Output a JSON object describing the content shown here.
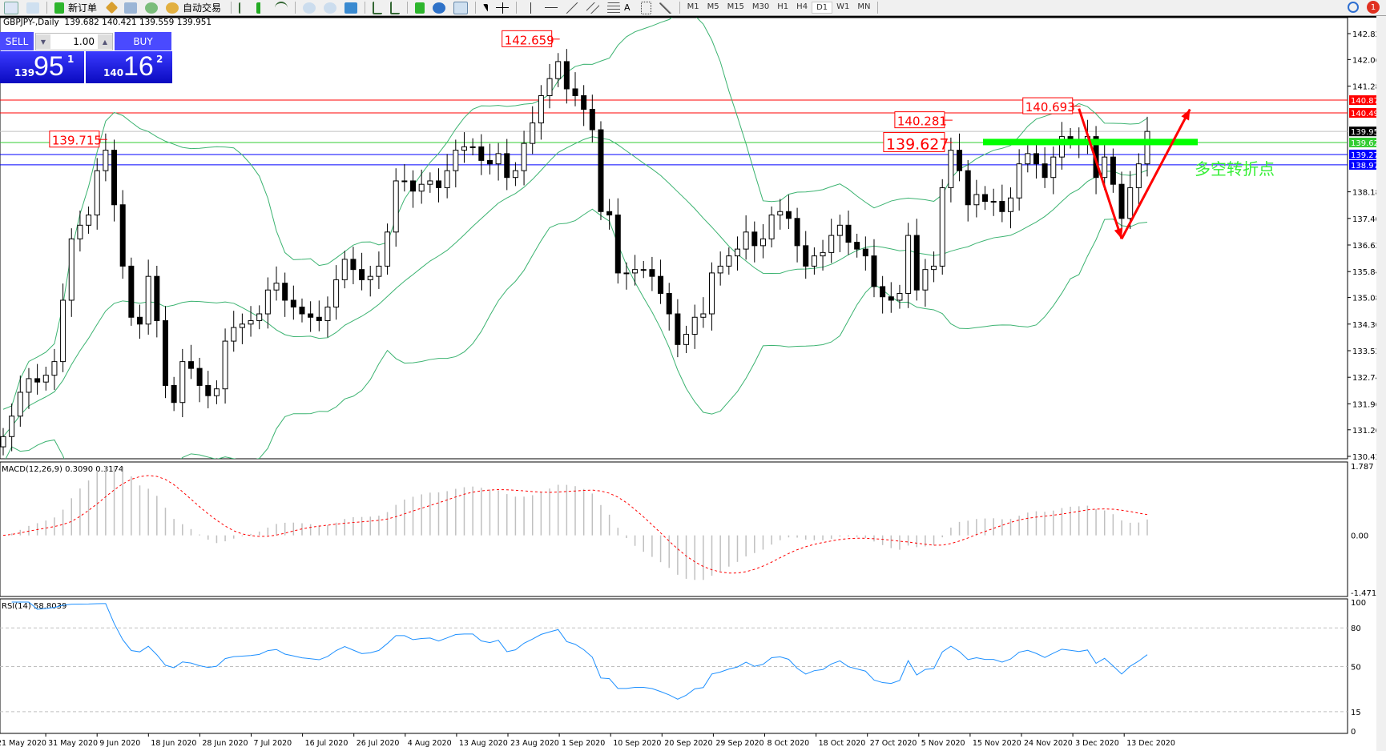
{
  "toolbar": {
    "new_order": "新订单",
    "auto_trading": "自动交易",
    "timeframes": [
      "M1",
      "M5",
      "M15",
      "M30",
      "H1",
      "H4",
      "D1",
      "W1",
      "MN"
    ],
    "active_timeframe": "D1",
    "notification_count": "1"
  },
  "chart": {
    "title": "GBPJPY-,Daily",
    "ohlc": "139.682 140.421 139.559 139.951"
  },
  "one_click": {
    "sell_label": "SELL",
    "buy_label": "BUY",
    "lot": "1.00",
    "sell_big": "139",
    "sell_main": "95",
    "sell_sup": "1",
    "buy_big": "140",
    "buy_main": "16",
    "buy_sup": "2"
  },
  "colors": {
    "bull": "#ffffff",
    "bear": "#000000",
    "bands": "#3cb371",
    "resistance": "#ff0000",
    "support": "#0000ff",
    "pivot": "#00ff00",
    "bid": "#c0c0c0",
    "macd_hist": "#c0c0c0",
    "macd_signal": "#ff0000",
    "rsi": "#1e90ff"
  },
  "chart_data": [
    {
      "type": "candlestick",
      "symbol": "GBPJPY-",
      "timeframe": "Daily",
      "ylim": [
        130.42,
        142.82
      ],
      "y_ticks": [
        "142.820",
        "142.060",
        "141.280",
        "138.180",
        "137.400",
        "136.620",
        "135.840",
        "135.080",
        "134.300",
        "133.520",
        "132.740",
        "131.960",
        "131.200",
        "130.420"
      ],
      "x_ticks": [
        "21 May 2020",
        "31 May 2020",
        "9 Jun 2020",
        "18 Jun 2020",
        "28 Jun 2020",
        "7 Jul 2020",
        "16 Jul 2020",
        "26 Jul 2020",
        "4 Aug 2020",
        "13 Aug 2020",
        "23 Aug 2020",
        "1 Sep 2020",
        "10 Sep 2020",
        "20 Sep 2020",
        "29 Sep 2020",
        "8 Oct 2020",
        "18 Oct 2020",
        "27 Oct 2020",
        "5 Nov 2020",
        "15 Nov 2020",
        "24 Nov 2020",
        "3 Dec 2020",
        "13 Dec 2020"
      ],
      "close": [
        131.0,
        131.6,
        132.3,
        132.7,
        132.6,
        132.8,
        133.2,
        135.0,
        136.8,
        137.2,
        137.5,
        138.8,
        139.4,
        137.8,
        136.0,
        134.5,
        134.3,
        135.7,
        134.4,
        132.5,
        132.0,
        133.2,
        133.0,
        132.5,
        132.2,
        132.4,
        133.8,
        134.2,
        134.3,
        134.4,
        134.6,
        135.3,
        135.5,
        135.0,
        134.8,
        134.6,
        134.5,
        134.4,
        134.8,
        135.6,
        136.2,
        135.9,
        135.6,
        135.7,
        136.0,
        137.0,
        138.5,
        138.5,
        138.2,
        138.4,
        138.5,
        138.3,
        138.8,
        139.4,
        139.5,
        139.5,
        139.1,
        139.0,
        139.3,
        138.6,
        138.8,
        139.6,
        140.2,
        141.0,
        141.5,
        142.0,
        141.2,
        141.0,
        140.6,
        140.0,
        137.6,
        137.5,
        135.8,
        135.8,
        135.9,
        135.9,
        135.7,
        135.2,
        134.6,
        133.7,
        134.0,
        134.5,
        134.6,
        135.8,
        136.0,
        136.3,
        136.5,
        137.0,
        136.6,
        136.8,
        137.5,
        137.6,
        137.4,
        136.6,
        136.0,
        136.3,
        136.4,
        136.9,
        137.2,
        136.7,
        136.5,
        136.3,
        135.4,
        135.1,
        135.0,
        135.2,
        136.9,
        135.3,
        135.9,
        136.0,
        138.3,
        139.4,
        138.8,
        137.8,
        138.1,
        137.9,
        137.9,
        137.6,
        138.0,
        139.0,
        139.3,
        139.0,
        138.6,
        139.2,
        139.8,
        139.7,
        139.6,
        139.8,
        138.6,
        139.2,
        138.4,
        137.4,
        138.3,
        139.0,
        139.951
      ],
      "indicators": [
        "Bollinger Bands"
      ],
      "horizontal_lines": [
        {
          "price": "140.870",
          "color": "#ff0000"
        },
        {
          "price": "140.495",
          "color": "#ff0000"
        },
        {
          "price": "139.951",
          "color": "#000000",
          "line": "#c0c0c0"
        },
        {
          "price": "139.627",
          "color": "#33cc33"
        },
        {
          "price": "139.275",
          "color": "#0000ff"
        },
        {
          "price": "138.970",
          "color": "#0000ff"
        }
      ],
      "price_labels": [
        {
          "text": "142.659",
          "price": 142.659,
          "index": 65
        },
        {
          "text": "139.715",
          "price": 139.715,
          "index": 12
        },
        {
          "text": "140.281",
          "price": 140.281,
          "index": 111
        },
        {
          "text": "139.627",
          "price": 139.627,
          "index": 111,
          "large": true
        },
        {
          "text": "140.693",
          "price": 140.693,
          "index": 126
        }
      ],
      "pivot_zone_price": 139.64,
      "annotation": "多空转折点",
      "arrows": [
        {
          "from": {
            "index": 126,
            "price": 140.62
          },
          "to": {
            "index": 131,
            "price": 136.8
          }
        },
        {
          "from": {
            "index": 131,
            "price": 136.8
          },
          "to": {
            "index": 139,
            "price": 140.6
          }
        }
      ]
    },
    {
      "type": "bar",
      "title": "MACD(12,26,9) 0.3090 0.3174",
      "ylim": [
        -1.471,
        1.787
      ],
      "y_ticks": [
        "1.787",
        "0.00",
        "-1.471"
      ]
    },
    {
      "type": "line",
      "title": "RSI(14) 58.8039",
      "ylim": [
        0,
        100
      ],
      "y_ticks": [
        "100",
        "80",
        "50",
        "15",
        "0"
      ],
      "levels": [
        80,
        50,
        15
      ]
    }
  ]
}
